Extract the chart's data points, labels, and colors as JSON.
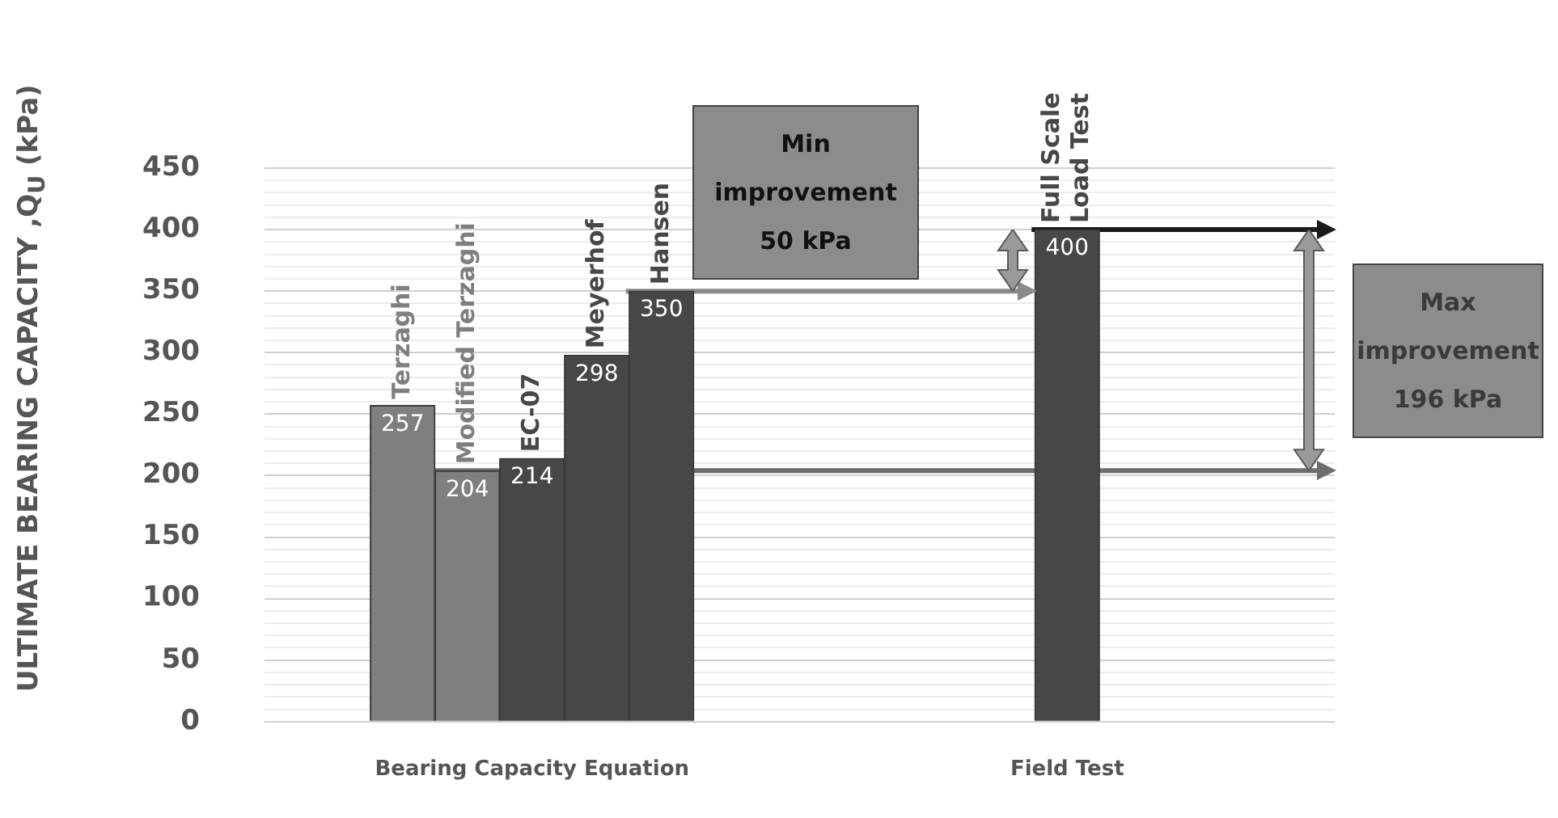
{
  "chart_data": {
    "type": "bar",
    "ylabel": "ULTIMATE BEARING CAPACITY ,Q$_{U}$ (kPa)",
    "categories": [
      "Bearing Capacity Equation",
      "Field Test"
    ],
    "series": [
      {
        "name": "Terzaghi",
        "color": "#7f7f7f",
        "values": [
          257,
          null
        ]
      },
      {
        "name": "Modified Terzaghi",
        "color": "#7f7f7f",
        "values": [
          204,
          null
        ]
      },
      {
        "name": "EC-07",
        "color": "#474747",
        "values": [
          214,
          null
        ]
      },
      {
        "name": "Meyerhof",
        "color": "#474747",
        "values": [
          298,
          null
        ]
      },
      {
        "name": "Hansen",
        "color": "#474747",
        "values": [
          350,
          null
        ]
      },
      {
        "name": "Full Scale Load Test",
        "color": "#474747",
        "values": [
          null,
          400
        ]
      }
    ],
    "ylim": [
      0,
      450
    ],
    "yticks": [
      0,
      {
        "value": 10,
        "label": null
      },
      {
        "value": 20,
        "label": null
      },
      {
        "value": 30,
        "label": null
      },
      {
        "value": 40,
        "label": null
      },
      50,
      {
        "value": 60,
        "label": null
      },
      {
        "value": 70,
        "label": null
      },
      {
        "value": 80,
        "label": null
      },
      {
        "value": 90,
        "label": null
      },
      100,
      {
        "value": 110,
        "label": null
      },
      {
        "value": 120,
        "label": null
      },
      {
        "value": 130,
        "label": null
      },
      {
        "value": 140,
        "label": null
      },
      150,
      {
        "value": 160,
        "label": null
      },
      {
        "value": 170,
        "label": null
      },
      {
        "value": 180,
        "label": null
      },
      {
        "value": 190,
        "label": null
      },
      200,
      {
        "value": 210,
        "label": null
      },
      {
        "value": 220,
        "label": null
      },
      {
        "value": 230,
        "label": null
      },
      {
        "value": 240,
        "label": null
      },
      250,
      {
        "value": 260,
        "label": null
      },
      {
        "value": 270,
        "label": null
      },
      {
        "value": 280,
        "label": null
      },
      {
        "value": 290,
        "label": null
      },
      300,
      {
        "value": 310,
        "label": null
      },
      {
        "value": 320,
        "label": null
      },
      {
        "value": 330,
        "label": null
      },
      {
        "value": 340,
        "label": null
      },
      350,
      {
        "value": 360,
        "label": null
      },
      {
        "value": 370,
        "label": null
      },
      {
        "value": 380,
        "label": null
      },
      {
        "value": 390,
        "label": null
      },
      400,
      {
        "value": 410,
        "label": null
      },
      {
        "value": 420,
        "label": null
      },
      {
        "value": 430,
        "label": null
      },
      {
        "value": 440,
        "label": null
      },
      450
    ],
    "grid": "y",
    "legend": false,
    "data_labels": true,
    "ref_lines": [
      {
        "axis": "y",
        "value": 350,
        "color": "#8a8a8a"
      },
      {
        "axis": "y",
        "value": 400,
        "color": "#1a1a1a"
      },
      {
        "axis": "y",
        "value": 204,
        "color": "#6e6e6e"
      }
    ],
    "annotations": [
      "Min improvement 50 kPa",
      "Max improvement 196 kPa"
    ]
  }
}
